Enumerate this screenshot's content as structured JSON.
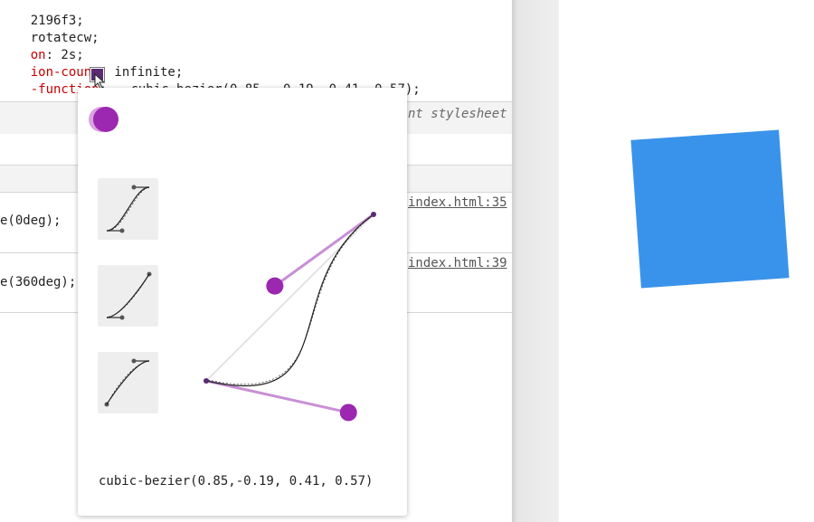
{
  "code_lines": [
    {
      "prop": "",
      "rest": "2196f3;"
    },
    {
      "prop": "",
      "rest": "rotatecw;"
    },
    {
      "prop": "on",
      "rest": ": 2s;"
    },
    {
      "prop": "ion-count",
      "rest": ": infinite;"
    }
  ],
  "timing_line": {
    "prop": "-function",
    "sep": ": ",
    "value": "cubic-bezier(0.85, -0.19, 0.41, 0.57);"
  },
  "stylesheet_hint": "nt stylesheet",
  "keyframes": [
    {
      "code": "e(0deg);",
      "link": "index.html:35"
    },
    {
      "code": "e(360deg);",
      "link": "index.html:39"
    }
  ],
  "bezier_editor": {
    "value_text": "cubic-bezier(0.85,-0.19, 0.41, 0.57)",
    "curve": {
      "x1": 0.85,
      "y1": -0.19,
      "x2": 0.41,
      "y2": 0.57
    },
    "presets": [
      {
        "name": "ease-in-out",
        "curve": [
          0.42,
          0,
          0.58,
          1
        ]
      },
      {
        "name": "ease-in",
        "curve": [
          0.42,
          0,
          1,
          1
        ]
      },
      {
        "name": "ease-out",
        "curve": [
          0,
          0,
          0.58,
          1
        ]
      }
    ],
    "accent_color": "#9c27b0"
  },
  "preview_square_color": "#3a93ea"
}
